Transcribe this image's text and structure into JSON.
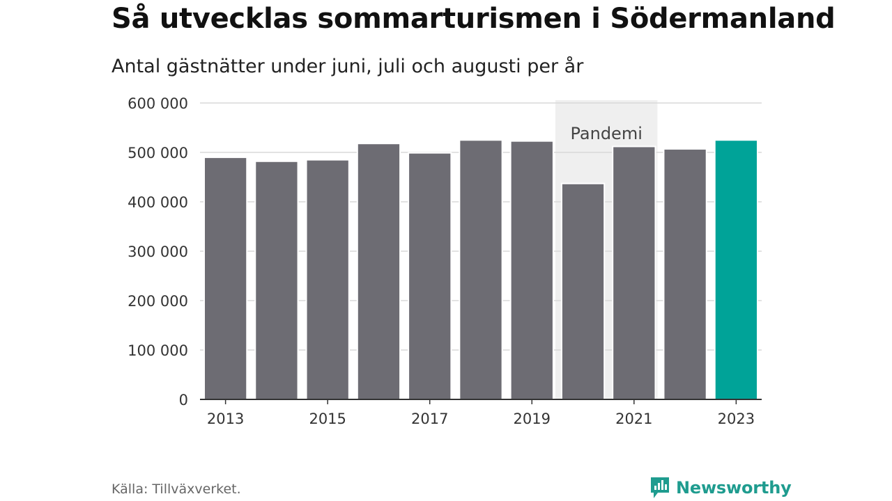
{
  "header": {
    "title": "Så utvecklas sommarturismen i Södermanland",
    "subtitle": "Antal gästnätter under juni, juli och augusti per år"
  },
  "footer": {
    "source": "Källa: Tillväxverket.",
    "brand": "Newsworthy"
  },
  "colors": {
    "bar": "#6d6c73",
    "highlight": "#00a398",
    "annotation_band": "#efefef",
    "grid": "#d9d9d9",
    "axis": "#333333",
    "brand": "#1f9c8f"
  },
  "chart_data": {
    "type": "bar",
    "categories": [
      "2013",
      "2014",
      "2015",
      "2016",
      "2017",
      "2018",
      "2019",
      "2020",
      "2021",
      "2022",
      "2023"
    ],
    "values": [
      490000,
      482000,
      485000,
      518000,
      499000,
      525000,
      523000,
      437000,
      512000,
      507000,
      525000
    ],
    "highlight": "2023",
    "ylim": [
      0,
      600000
    ],
    "yticks": [
      0,
      100000,
      200000,
      300000,
      400000,
      500000,
      600000
    ],
    "ytick_labels": [
      "0",
      "100 000",
      "200 000",
      "300 000",
      "400 000",
      "500 000",
      "600 000"
    ],
    "xtick_labels": [
      "2013",
      "2015",
      "2017",
      "2019",
      "2021",
      "2023"
    ],
    "annotation": {
      "label": "Pandemi",
      "from": "2020",
      "to": "2021"
    },
    "grid": true
  }
}
